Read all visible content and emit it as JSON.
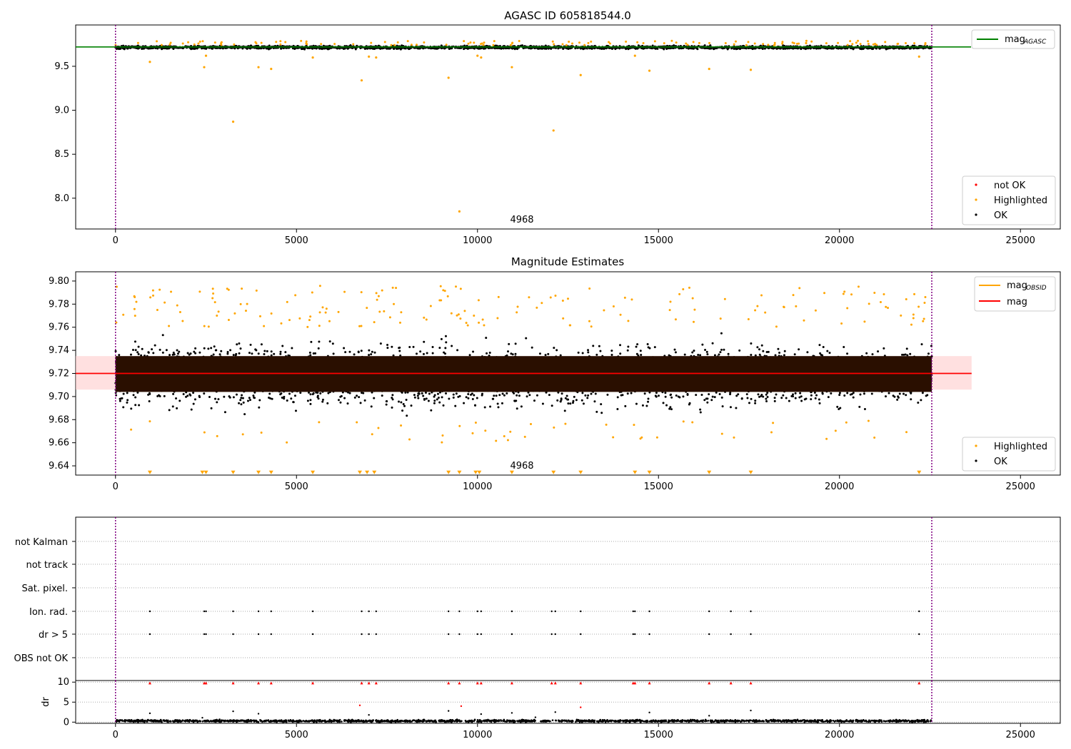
{
  "chart_data": [
    {
      "type": "scatter",
      "title": "AGASC ID 605818544.0",
      "xlim": [
        -1100,
        26100
      ],
      "ylim": [
        7.65,
        9.97
      ],
      "xticks": [
        0,
        5000,
        10000,
        15000,
        20000,
        25000
      ],
      "yticks": [
        8.0,
        8.5,
        9.0,
        9.5
      ],
      "tick_labels_x": [
        "0",
        "5000",
        "10000",
        "15000",
        "20000",
        "25000"
      ],
      "tick_labels_y": [
        "8.0",
        "8.5",
        "9.0",
        "9.5"
      ],
      "vlines": [
        0,
        22550
      ],
      "annotation": {
        "text": "4968",
        "x": 11300,
        "y": 7.74
      },
      "mag_line": {
        "name": "mag",
        "subscript": "AGASC",
        "value": 9.72,
        "color": "#008000"
      },
      "legend_points": {
        "position": "lower-right",
        "entries": [
          {
            "name": "not OK",
            "color": "#ff0000"
          },
          {
            "name": "Highlighted",
            "color": "#ffa500"
          },
          {
            "name": "OK",
            "color": "#000000"
          }
        ]
      },
      "ok_band": {
        "x_range": [
          0,
          22550
        ],
        "center": 9.715,
        "spread": 0.018
      },
      "highlighted_points": [
        {
          "x": 950,
          "y": 9.55
        },
        {
          "x": 2450,
          "y": 9.49
        },
        {
          "x": 2500,
          "y": 9.62
        },
        {
          "x": 3250,
          "y": 8.87
        },
        {
          "x": 3950,
          "y": 9.49
        },
        {
          "x": 4300,
          "y": 9.47
        },
        {
          "x": 5450,
          "y": 9.6
        },
        {
          "x": 6800,
          "y": 9.34
        },
        {
          "x": 7000,
          "y": 9.61
        },
        {
          "x": 7200,
          "y": 9.6
        },
        {
          "x": 9200,
          "y": 9.37
        },
        {
          "x": 9500,
          "y": 7.85
        },
        {
          "x": 10000,
          "y": 9.62
        },
        {
          "x": 10100,
          "y": 9.6
        },
        {
          "x": 10950,
          "y": 9.49
        },
        {
          "x": 12100,
          "y": 8.77
        },
        {
          "x": 12850,
          "y": 9.4
        },
        {
          "x": 14350,
          "y": 9.62
        },
        {
          "x": 14750,
          "y": 9.45
        },
        {
          "x": 16400,
          "y": 9.47
        },
        {
          "x": 17550,
          "y": 9.46
        },
        {
          "x": 22200,
          "y": 9.61
        }
      ]
    },
    {
      "type": "scatter",
      "title": "Magnitude Estimates",
      "xlim": [
        -1100,
        26100
      ],
      "ylim": [
        9.632,
        9.808
      ],
      "xticks": [
        0,
        5000,
        10000,
        15000,
        20000,
        25000
      ],
      "yticks": [
        9.64,
        9.66,
        9.68,
        9.7,
        9.72,
        9.74,
        9.76,
        9.78,
        9.8
      ],
      "tick_labels_x": [
        "0",
        "5000",
        "10000",
        "15000",
        "20000",
        "25000"
      ],
      "tick_labels_y": [
        "9.64",
        "9.66",
        "9.68",
        "9.70",
        "9.72",
        "9.74",
        "9.76",
        "9.78",
        "9.80"
      ],
      "vlines": [
        0,
        22550
      ],
      "annotation": {
        "text": "4968",
        "x": 11300,
        "y": 9.64
      },
      "lines": [
        {
          "name": "mag",
          "subscript": "OBSID",
          "color": "#ffa500"
        },
        {
          "name": "mag",
          "color": "#ff0000",
          "value": 9.72,
          "x_range": [
            -1100,
            23650
          ]
        }
      ],
      "band": {
        "y_range": [
          9.706,
          9.735
        ],
        "x_range": [
          -1100,
          23650
        ],
        "color": "#ffcccc"
      },
      "legend_points": {
        "position": "lower-right",
        "entries": [
          {
            "name": "Highlighted",
            "color": "#ffa500"
          },
          {
            "name": "OK",
            "color": "#000000"
          }
        ]
      },
      "ok_band": {
        "x_range": [
          0,
          22550
        ],
        "center": 9.718,
        "spread": 0.02
      },
      "lower_limit_markers_x": [
        950,
        2400,
        2500,
        3250,
        3950,
        4300,
        5450,
        6750,
        6950,
        7150,
        9200,
        9500,
        9950,
        10050,
        10950,
        12100,
        12850,
        14350,
        14750,
        16400,
        17550,
        22200
      ]
    },
    {
      "type": "scatter",
      "title": "",
      "categories": [
        "not Kalman",
        "not track",
        "Sat. pixel.",
        "Ion. rad.",
        "dr > 5",
        "OBS not OK"
      ],
      "flag_points": {
        "Ion. rad.": [
          950,
          2450,
          2500,
          3250,
          3950,
          4300,
          5450,
          6800,
          7000,
          7200,
          9200,
          9500,
          10000,
          10100,
          10950,
          12050,
          12150,
          12850,
          14300,
          14350,
          14750,
          16400,
          17000,
          17550,
          22200
        ],
        "dr > 5": [
          950,
          2450,
          2500,
          3250,
          3950,
          4300,
          5450,
          6800,
          7000,
          7200,
          9200,
          9500,
          10000,
          10100,
          10950,
          12050,
          12150,
          12850,
          14300,
          14350,
          14750,
          16400,
          17000,
          17550,
          22200
        ]
      },
      "vlines": [
        0,
        22550
      ]
    },
    {
      "type": "scatter",
      "title": "",
      "ylabel": "dr",
      "xlim": [
        -1100,
        26100
      ],
      "ylim": [
        -0.3,
        10.4
      ],
      "xticks": [
        0,
        5000,
        10000,
        15000,
        20000,
        25000
      ],
      "yticks": [
        0,
        5,
        10
      ],
      "tick_labels_x": [
        "0",
        "5000",
        "10000",
        "15000",
        "20000",
        "25000"
      ],
      "tick_labels_y": [
        "0",
        "5",
        "10"
      ],
      "vlines": [
        0,
        22550
      ],
      "clipped_points_y10": [
        950,
        2450,
        2500,
        3250,
        3950,
        4300,
        5450,
        6800,
        7000,
        7200,
        9200,
        9500,
        10000,
        10100,
        10950,
        12050,
        12150,
        12850,
        14300,
        14350,
        14750,
        16400,
        17000,
        17550,
        22200
      ],
      "red_points": [
        {
          "x": 6750,
          "y": 4.2
        },
        {
          "x": 9550,
          "y": 4.0
        },
        {
          "x": 12850,
          "y": 3.7
        }
      ],
      "black_outliers": [
        {
          "x": 950,
          "y": 2.2
        },
        {
          "x": 3250,
          "y": 2.7
        },
        {
          "x": 3950,
          "y": 2.1
        },
        {
          "x": 7000,
          "y": 1.8
        },
        {
          "x": 9200,
          "y": 2.8
        },
        {
          "x": 10100,
          "y": 2.0
        },
        {
          "x": 10950,
          "y": 2.3
        },
        {
          "x": 12150,
          "y": 2.5
        },
        {
          "x": 14750,
          "y": 2.4
        },
        {
          "x": 16400,
          "y": 1.6
        },
        {
          "x": 17550,
          "y": 2.9
        },
        {
          "x": 11600,
          "y": 1.2
        },
        {
          "x": 2400,
          "y": 1.1
        }
      ],
      "ok_band": {
        "x_range": [
          0,
          22550
        ],
        "center": 0.3,
        "spread": 0.2
      }
    }
  ]
}
